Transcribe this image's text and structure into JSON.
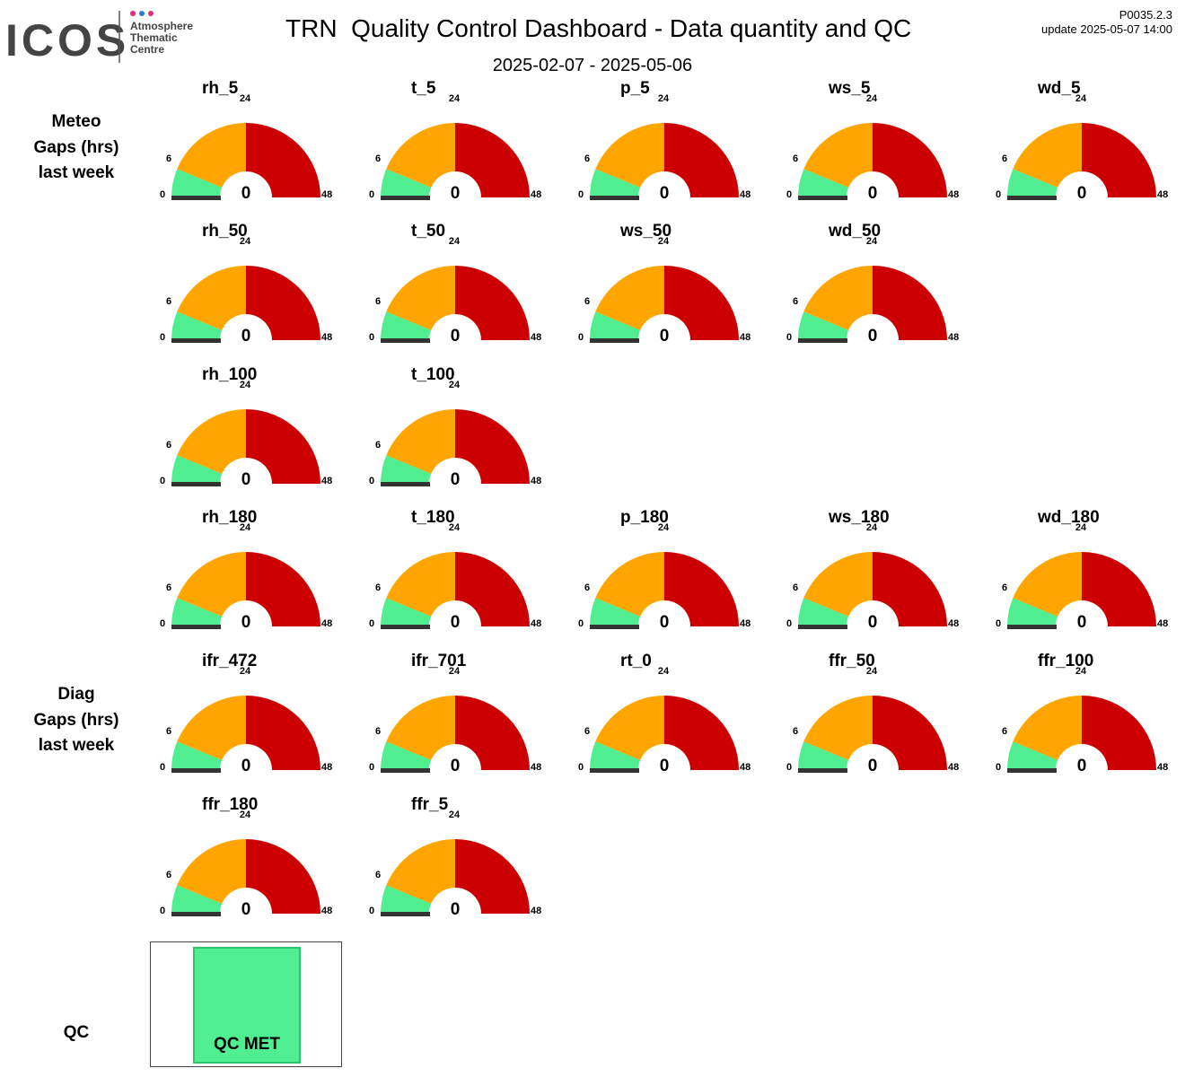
{
  "header": {
    "logo_text": "ICOS",
    "logo_sub": [
      "Atmosphere",
      "Thematic",
      "Centre"
    ],
    "title": "TRN  Quality Control Dashboard - Data quantity and QC",
    "subtitle": "2025-02-07 - 2025-05-06",
    "version": "P0035.2.3",
    "update": "update  2025-05-07 14:00"
  },
  "row_labels": {
    "meteo": [
      "Meteo",
      "Gaps (hrs)",
      "last week"
    ],
    "diag": [
      "Diag",
      "Gaps (hrs)",
      "last week"
    ],
    "qc": "QC"
  },
  "colors": {
    "green": "#50ee90",
    "orange": "#ffa500",
    "red": "#cc0000",
    "needle": "#333333",
    "qc_green": "#50ee90"
  },
  "chart_data": {
    "type": "gauge",
    "scale_min": 0,
    "scale_max": 48,
    "bands": [
      {
        "from": 0,
        "to": 6,
        "color": "#50ee90"
      },
      {
        "from": 6,
        "to": 24,
        "color": "#ffa500"
      },
      {
        "from": 24,
        "to": 48,
        "color": "#cc0000"
      }
    ],
    "tick_labels": [
      "0",
      "6",
      "24",
      "48"
    ],
    "rows": [
      {
        "group": "meteo",
        "gauges": [
          {
            "name": "rh_5",
            "value": 0
          },
          {
            "name": "t_5",
            "value": 0
          },
          {
            "name": "p_5",
            "value": 0
          },
          {
            "name": "ws_5",
            "value": 0
          },
          {
            "name": "wd_5",
            "value": 0
          }
        ]
      },
      {
        "group": "meteo",
        "gauges": [
          {
            "name": "rh_50",
            "value": 0
          },
          {
            "name": "t_50",
            "value": 0
          },
          {
            "name": "ws_50",
            "value": 0
          },
          {
            "name": "wd_50",
            "value": 0
          }
        ]
      },
      {
        "group": "meteo",
        "gauges": [
          {
            "name": "rh_100",
            "value": 0
          },
          {
            "name": "t_100",
            "value": 0
          }
        ]
      },
      {
        "group": "meteo",
        "gauges": [
          {
            "name": "rh_180",
            "value": 0
          },
          {
            "name": "t_180",
            "value": 0
          },
          {
            "name": "p_180",
            "value": 0
          },
          {
            "name": "ws_180",
            "value": 0
          },
          {
            "name": "wd_180",
            "value": 0
          }
        ]
      },
      {
        "group": "diag",
        "gauges": [
          {
            "name": "ifr_472",
            "value": 0
          },
          {
            "name": "ifr_701",
            "value": 0
          },
          {
            "name": "rt_0",
            "value": 0
          },
          {
            "name": "ffr_50",
            "value": 0
          },
          {
            "name": "ffr_100",
            "value": 0
          }
        ]
      },
      {
        "group": "diag",
        "gauges": [
          {
            "name": "ffr_180",
            "value": 0
          },
          {
            "name": "ffr_5",
            "value": 0
          }
        ]
      }
    ]
  },
  "qc": {
    "status": "QC MET"
  }
}
